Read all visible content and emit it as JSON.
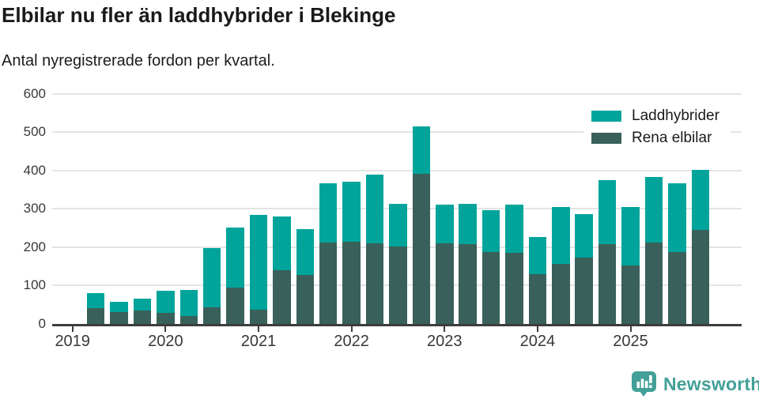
{
  "title": "Elbilar nu fler än laddhybrider i Blekinge",
  "subtitle": "Antal nyregistrerade fordon per kvartal.",
  "footer": {
    "brand": "Newsworthy"
  },
  "colors": {
    "laddhybrider": "#00a49b",
    "rena_elbilar": "#39605a",
    "brand": "#42a098",
    "axis": "#3d3d3d",
    "gridline": "#e4e4e4"
  },
  "chart_data": {
    "type": "bar",
    "stacked": true,
    "title": "Elbilar nu fler än laddhybrider i Blekinge",
    "subtitle": "Antal nyregistrerade fordon per kvartal.",
    "xlabel": "",
    "ylabel": "",
    "ylim": [
      0,
      600
    ],
    "y_ticks": [
      0,
      100,
      200,
      300,
      400,
      500,
      600
    ],
    "x_tick_labels": [
      "2019",
      "2020",
      "2021",
      "2022",
      "2023",
      "2024",
      "2025"
    ],
    "grid": true,
    "legend_position": "top-right",
    "categories": [
      "2019 K2",
      "2019 K3",
      "2019 K4",
      "2020 K1",
      "2020 K2",
      "2020 K3",
      "2020 K4",
      "2021 K1",
      "2021 K2",
      "2021 K3",
      "2021 K4",
      "2022 K1",
      "2022 K2",
      "2022 K3",
      "2022 K4",
      "2023 K1",
      "2023 K2",
      "2023 K3",
      "2023 K4",
      "2024 K1",
      "2024 K2",
      "2024 K3",
      "2024 K4",
      "2025 K1",
      "2025 K2",
      "2025 K3",
      "2025 K4"
    ],
    "series": [
      {
        "name": "Laddhybrider",
        "color": "#00a49b",
        "stack_order": "top",
        "values": [
          38,
          27,
          31,
          59,
          68,
          155,
          157,
          246,
          140,
          120,
          155,
          157,
          179,
          112,
          122,
          100,
          105,
          109,
          125,
          97,
          149,
          114,
          166,
          152,
          171,
          179,
          156
        ]
      },
      {
        "name": "Rena elbilar",
        "color": "#39605a",
        "stack_order": "bottom",
        "values": [
          42,
          30,
          34,
          28,
          20,
          43,
          94,
          38,
          141,
          127,
          212,
          214,
          210,
          202,
          392,
          210,
          209,
          188,
          186,
          130,
          156,
          172,
          208,
          152,
          213,
          187,
          246
        ]
      }
    ],
    "totals": [
      80,
      57,
      65,
      87,
      88,
      198,
      251,
      284,
      281,
      247,
      367,
      371,
      389,
      314,
      514,
      310,
      314,
      297,
      311,
      227,
      305,
      286,
      374,
      304,
      384,
      366,
      402
    ]
  }
}
